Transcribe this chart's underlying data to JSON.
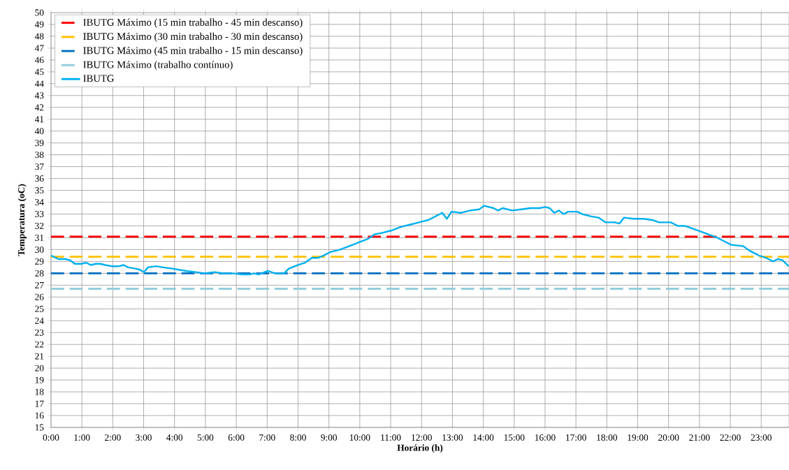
{
  "chart_data": {
    "type": "line",
    "xlabel": "Horário (h)",
    "ylabel": "Temperatura (oC)",
    "xlim": [
      0,
      23.9
    ],
    "ylim": [
      15,
      50
    ],
    "xticks": [
      {
        "value": 0,
        "label": "0:00"
      },
      {
        "value": 1,
        "label": "1:00"
      },
      {
        "value": 2,
        "label": "2:00"
      },
      {
        "value": 3,
        "label": "3:00"
      },
      {
        "value": 4,
        "label": "4:00"
      },
      {
        "value": 5,
        "label": "5:00"
      },
      {
        "value": 6,
        "label": "6:00"
      },
      {
        "value": 7,
        "label": "7:00"
      },
      {
        "value": 8,
        "label": "8:00"
      },
      {
        "value": 9,
        "label": "9:00"
      },
      {
        "value": 10,
        "label": "10:00"
      },
      {
        "value": 11,
        "label": "11:00"
      },
      {
        "value": 12,
        "label": "12:00"
      },
      {
        "value": 13,
        "label": "13:00"
      },
      {
        "value": 14,
        "label": "14:00"
      },
      {
        "value": 15,
        "label": "15:00"
      },
      {
        "value": 16,
        "label": "16:00"
      },
      {
        "value": 17,
        "label": "17:00"
      },
      {
        "value": 18,
        "label": "18:00"
      },
      {
        "value": 19,
        "label": "19:00"
      },
      {
        "value": 20,
        "label": "20:00"
      },
      {
        "value": 21,
        "label": "21:00"
      },
      {
        "value": 22,
        "label": "22:00"
      },
      {
        "value": 23,
        "label": "23:00"
      }
    ],
    "yticks": [
      15,
      16,
      17,
      18,
      19,
      20,
      21,
      22,
      23,
      24,
      25,
      26,
      27,
      28,
      29,
      30,
      31,
      32,
      33,
      34,
      35,
      36,
      37,
      38,
      39,
      40,
      41,
      42,
      43,
      44,
      45,
      46,
      47,
      48,
      49,
      50
    ],
    "grid": true,
    "legend": "top left",
    "series": [
      {
        "name": "IBUTG Máximo (15 min trabalho - 45 min descanso)",
        "color": "#ff0000",
        "line_style": "dashed",
        "x": [
          0,
          23.9
        ],
        "values": [
          31.1,
          31.1
        ]
      },
      {
        "name": "IBUTG Máximo (30 min trabalho - 30 min descanso)",
        "color": "#ffc000",
        "line_style": "dashed",
        "x": [
          0,
          23.9
        ],
        "values": [
          29.4,
          29.4
        ]
      },
      {
        "name": "IBUTG Máximo (45 min trabalho - 15 min descanso)",
        "color": "#0070c0",
        "line_style": "dashed",
        "x": [
          0,
          23.9
        ],
        "values": [
          28.0,
          28.0
        ]
      },
      {
        "name": "IBUTG Máximo (trabalho contínuo)",
        "color": "#92cddc",
        "line_style": "dashed",
        "x": [
          0,
          23.9
        ],
        "values": [
          26.7,
          26.7
        ]
      },
      {
        "name": "IBUTG",
        "color": "#00b0f0",
        "line_style": "solid",
        "x": [
          0,
          0.24,
          0.47,
          0.62,
          0.77,
          0.99,
          1.14,
          1.29,
          1.45,
          1.6,
          1.75,
          1.97,
          2.2,
          2.35,
          2.5,
          2.73,
          2.88,
          3.01,
          3.14,
          3.4,
          3.63,
          3.93,
          4.15,
          4.38,
          4.68,
          4.98,
          5.29,
          5.59,
          5.89,
          6.19,
          6.42,
          6.57,
          6.72,
          7.02,
          7.25,
          7.55,
          7.7,
          8.0,
          8.23,
          8.45,
          8.64,
          8.83,
          9.05,
          9.36,
          9.66,
          9.96,
          10.26,
          10.49,
          10.71,
          11.01,
          11.31,
          11.62,
          11.77,
          12.07,
          12.22,
          12.37,
          12.67,
          12.82,
          12.97,
          13.27,
          13.57,
          13.87,
          14.02,
          14.33,
          14.48,
          14.63,
          14.93,
          15.23,
          15.53,
          15.83,
          16.0,
          16.15,
          16.3,
          16.45,
          16.6,
          16.75,
          17.05,
          17.2,
          17.5,
          17.73,
          17.96,
          18.26,
          18.41,
          18.56,
          18.86,
          19.17,
          19.47,
          19.69,
          20.07,
          20.3,
          20.52,
          20.75,
          20.97,
          21.28,
          21.58,
          21.88,
          22.03,
          22.41,
          22.63,
          22.93,
          23.16,
          23.38,
          23.54,
          23.69,
          23.89
        ],
        "values": [
          29.5,
          29.2,
          29.2,
          29.1,
          28.8,
          28.8,
          28.9,
          28.7,
          28.8,
          28.8,
          28.7,
          28.6,
          28.6,
          28.7,
          28.5,
          28.4,
          28.3,
          28.1,
          28.5,
          28.6,
          28.5,
          28.4,
          28.3,
          28.2,
          28.1,
          28.0,
          28.1,
          28.0,
          28.0,
          27.9,
          27.9,
          28.0,
          27.9,
          28.2,
          28.0,
          28.0,
          28.4,
          28.7,
          28.9,
          29.3,
          29.3,
          29.5,
          29.8,
          30.0,
          30.3,
          30.6,
          30.9,
          31.3,
          31.4,
          31.6,
          31.9,
          32.1,
          32.2,
          32.4,
          32.5,
          32.7,
          33.1,
          32.6,
          33.2,
          33.1,
          33.3,
          33.4,
          33.7,
          33.5,
          33.3,
          33.5,
          33.3,
          33.4,
          33.5,
          33.5,
          33.6,
          33.5,
          33.1,
          33.3,
          33.0,
          33.2,
          33.2,
          33.0,
          32.8,
          32.7,
          32.3,
          32.3,
          32.2,
          32.7,
          32.6,
          32.6,
          32.5,
          32.3,
          32.3,
          32.0,
          32.0,
          31.8,
          31.6,
          31.3,
          31.0,
          30.6,
          30.4,
          30.3,
          29.9,
          29.5,
          29.3,
          29.0,
          29.2,
          29.1,
          28.6
        ]
      }
    ]
  }
}
